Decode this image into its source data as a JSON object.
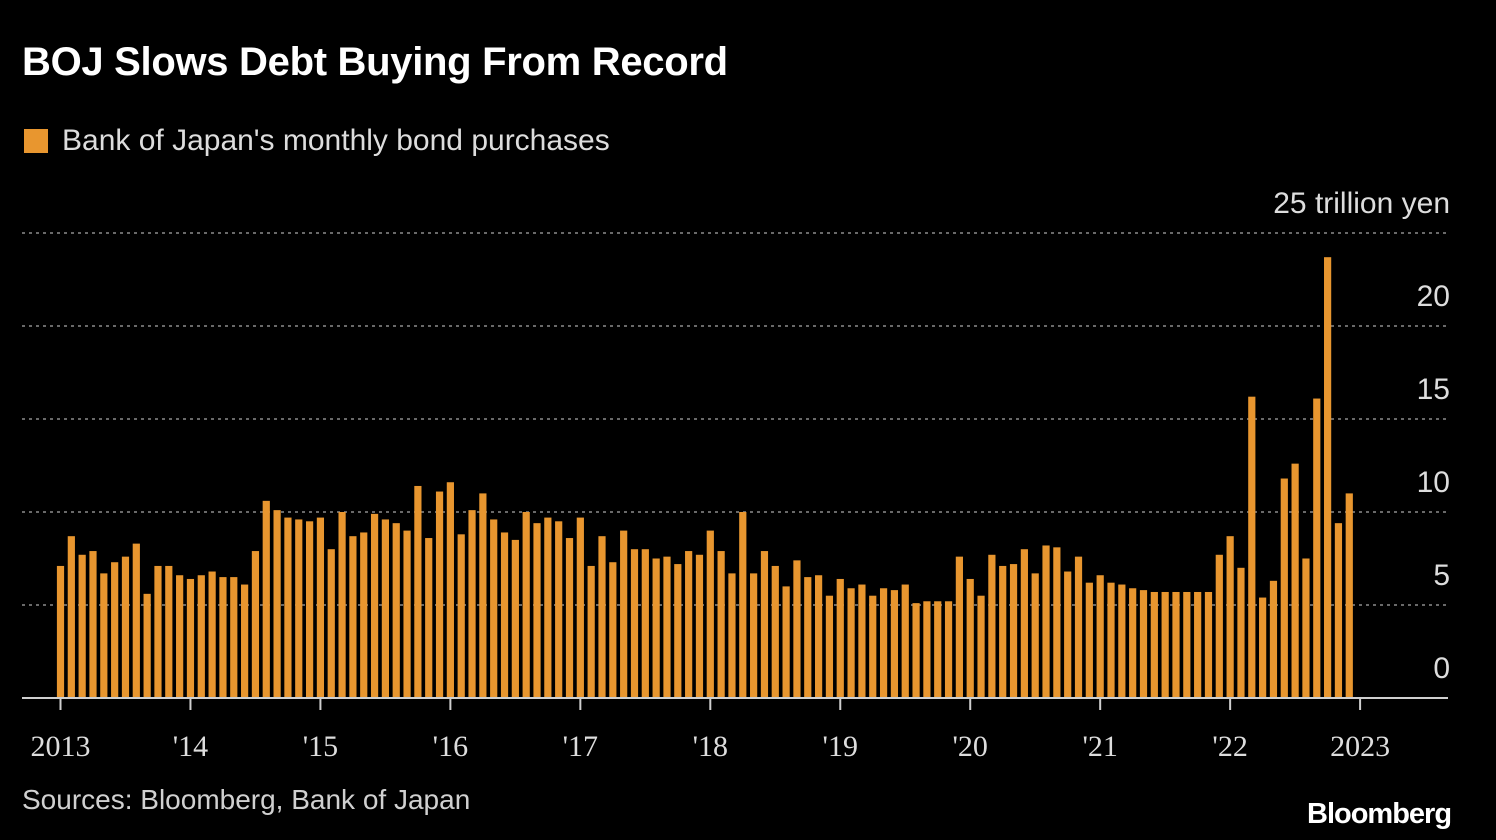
{
  "header": {
    "title": "BOJ Slows Debt Buying From Record"
  },
  "legend": {
    "label": "Bank of Japan's monthly bond purchases",
    "color": "#e8962f"
  },
  "footer": {
    "sources": "Sources: Bloomberg, Bank of Japan",
    "brand": "Bloomberg"
  },
  "chart_data": {
    "type": "bar",
    "title": "BOJ Slows Debt Buying From Record",
    "series": [
      {
        "name": "Bank of Japan's monthly bond purchases",
        "unit": "trillion yen",
        "start": "2013-01",
        "values": [
          7.1,
          8.7,
          7.7,
          7.9,
          6.7,
          7.3,
          7.6,
          8.3,
          5.6,
          7.1,
          7.1,
          6.6,
          6.4,
          6.6,
          6.8,
          6.5,
          6.5,
          6.1,
          7.9,
          10.6,
          10.1,
          9.7,
          9.6,
          9.5,
          9.7,
          8.0,
          10.0,
          8.7,
          8.9,
          9.9,
          9.6,
          9.4,
          9.0,
          11.4,
          8.6,
          11.1,
          11.6,
          8.8,
          10.1,
          11.0,
          9.6,
          8.9,
          8.5,
          10.0,
          9.4,
          9.7,
          9.5,
          8.6,
          9.7,
          7.1,
          8.7,
          7.3,
          9.0,
          8.0,
          8.0,
          7.5,
          7.6,
          7.2,
          7.9,
          7.7,
          9.0,
          7.9,
          6.7,
          10.0,
          6.7,
          7.9,
          7.1,
          6.0,
          7.4,
          6.5,
          6.6,
          5.5,
          6.4,
          5.9,
          6.1,
          5.5,
          5.9,
          5.8,
          6.1,
          5.1,
          5.2,
          5.2,
          5.2,
          7.6,
          6.4,
          5.5,
          7.7,
          7.1,
          7.2,
          8.0,
          6.7,
          8.2,
          8.1,
          6.8,
          7.6,
          6.2,
          6.6,
          6.2,
          6.1,
          5.9,
          5.8,
          5.7,
          5.7,
          5.7,
          5.7,
          5.7,
          5.7,
          7.7,
          8.7,
          7.0,
          16.2,
          5.4,
          6.3,
          11.8,
          12.6,
          7.5,
          16.1,
          23.7,
          9.4,
          11.0
        ]
      }
    ],
    "x_ticks": [
      {
        "label": "2013",
        "year": 2013
      },
      {
        "label": "'14",
        "year": 2014
      },
      {
        "label": "'15",
        "year": 2015
      },
      {
        "label": "'16",
        "year": 2016
      },
      {
        "label": "'17",
        "year": 2017
      },
      {
        "label": "'18",
        "year": 2018
      },
      {
        "label": "'19",
        "year": 2019
      },
      {
        "label": "'20",
        "year": 2020
      },
      {
        "label": "'21",
        "year": 2021
      },
      {
        "label": "'22",
        "year": 2022
      },
      {
        "label": "2023",
        "year": 2023
      }
    ],
    "y_ticks": [
      {
        "value": 0,
        "label": "0"
      },
      {
        "value": 5,
        "label": "5"
      },
      {
        "value": 10,
        "label": "10"
      },
      {
        "value": 15,
        "label": "15"
      },
      {
        "value": 20,
        "label": "20"
      },
      {
        "value": 25,
        "label": "25 trillion yen"
      }
    ],
    "ylim": [
      0,
      25
    ],
    "xlabel": "",
    "ylabel": "trillion yen",
    "grid": true,
    "legend_position": "top-left"
  }
}
